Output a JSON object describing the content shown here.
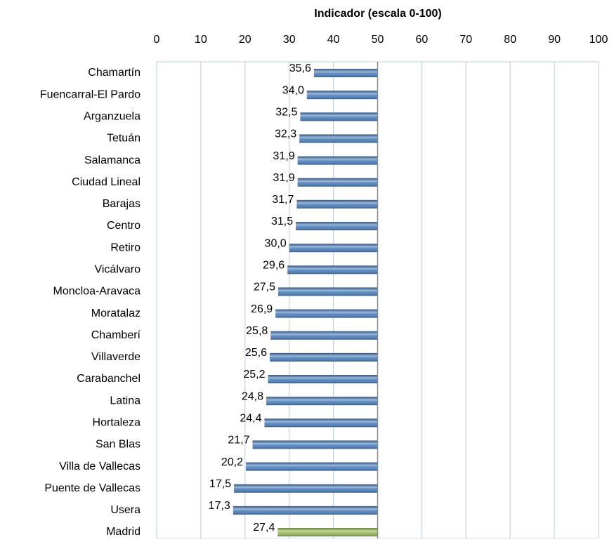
{
  "chart_data": {
    "type": "bar",
    "orientation": "horizontal",
    "title": "Indicador (escala 0-100)",
    "categories": [
      "Chamartín",
      "Fuencarral-El Pardo",
      "Arganzuela",
      "Tetuán",
      "Salamanca",
      "Ciudad Lineal",
      "Barajas",
      "Centro",
      "Retiro",
      "Vicálvaro",
      "Moncloa-Aravaca",
      "Moratalaz",
      "Chamberí",
      "Villaverde",
      "Carabanchel",
      "Latina",
      "Hortaleza",
      "San Blas",
      "Villa de Vallecas",
      "Puente de Vallecas",
      "Usera",
      "Madrid"
    ],
    "values": [
      35.6,
      34.0,
      32.5,
      32.3,
      31.9,
      31.9,
      31.7,
      31.5,
      30.0,
      29.6,
      27.5,
      26.9,
      25.8,
      25.6,
      25.2,
      24.8,
      24.4,
      21.7,
      20.2,
      17.5,
      17.3,
      27.4
    ],
    "value_labels": [
      "35,6",
      "34,0",
      "32,5",
      "32,3",
      "31,9",
      "31,9",
      "31,7",
      "31,5",
      "30,0",
      "29,6",
      "27,5",
      "26,9",
      "25,8",
      "25,6",
      "25,2",
      "24,8",
      "24,4",
      "21,7",
      "20,2",
      "17,5",
      "17,3",
      "27,4"
    ],
    "colors": [
      "#4f81bd",
      "#4f81bd",
      "#4f81bd",
      "#4f81bd",
      "#4f81bd",
      "#4f81bd",
      "#4f81bd",
      "#4f81bd",
      "#4f81bd",
      "#4f81bd",
      "#4f81bd",
      "#4f81bd",
      "#4f81bd",
      "#4f81bd",
      "#4f81bd",
      "#4f81bd",
      "#4f81bd",
      "#4f81bd",
      "#4f81bd",
      "#4f81bd",
      "#4f81bd",
      "#9bbb59"
    ],
    "base": 50,
    "xlim": [
      0,
      100
    ],
    "xticks": [
      0,
      10,
      20,
      30,
      40,
      50,
      60,
      70,
      80,
      90,
      100
    ],
    "grid": true
  }
}
